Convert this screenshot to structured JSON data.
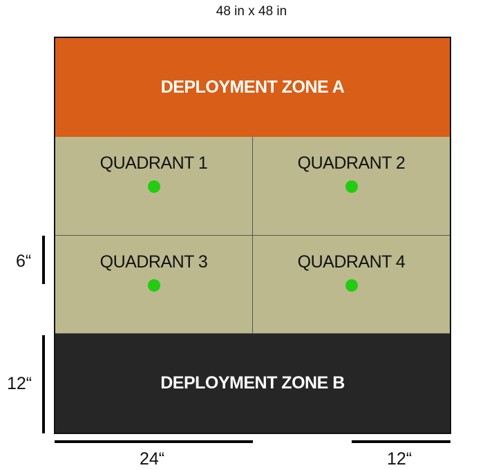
{
  "board": {
    "title": "48 in x 48 in",
    "zone_a": {
      "label": "DEPLOYMENT ZONE A",
      "color": "#d95e17"
    },
    "zone_b": {
      "label": "DEPLOYMENT ZONE B",
      "color": "#262626"
    },
    "quadrant_color": "#bcb98f",
    "objective_color": "#22cc11",
    "quadrants": [
      {
        "label": "QUADRANT 1"
      },
      {
        "label": "QUADRANT 2"
      },
      {
        "label": "QUADRANT 3"
      },
      {
        "label": "QUADRANT 4"
      }
    ]
  },
  "dimensions": {
    "quadrant_height": "6“",
    "zone_height": "12“",
    "half_width": "24“",
    "short_width": "12“"
  }
}
